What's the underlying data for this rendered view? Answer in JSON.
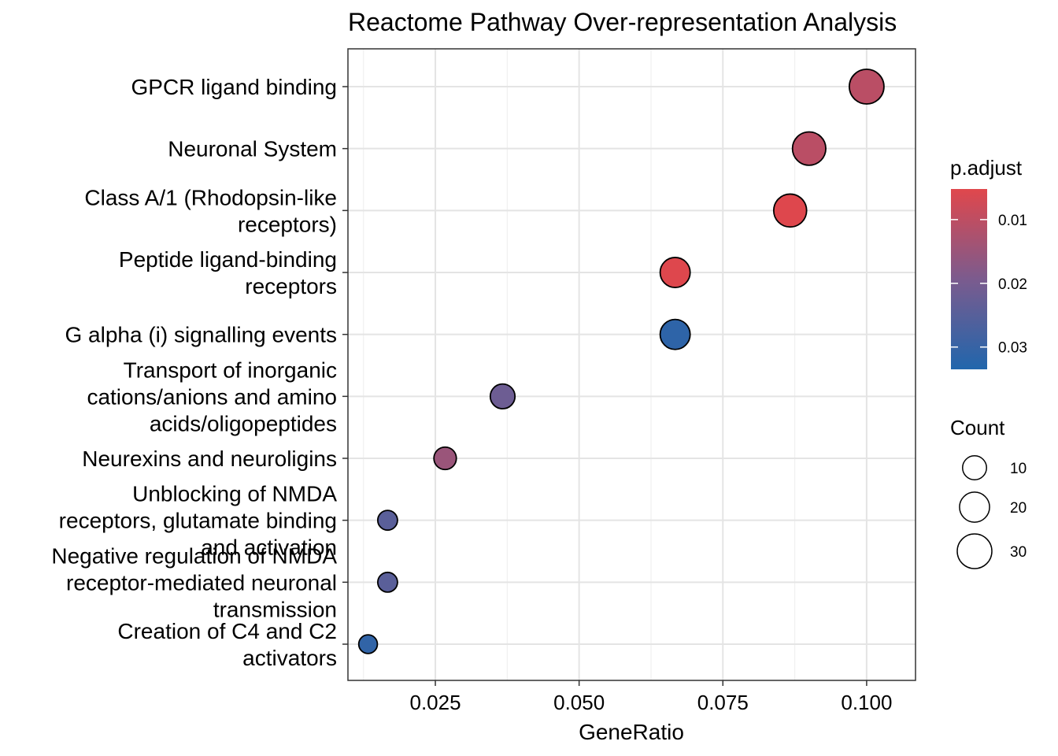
{
  "chart_data": {
    "type": "scatter",
    "title": "Reactome Pathway Over-representation Analysis",
    "xlabel": "GeneRatio",
    "ylabel": "",
    "xlim": [
      0.0098,
      0.1085
    ],
    "xticks": [
      0.025,
      0.05,
      0.075,
      0.1
    ],
    "xtick_labels": [
      "0.025",
      "0.050",
      "0.075",
      "0.100"
    ],
    "grid": true,
    "points": [
      {
        "label_lines": [
          "GPCR ligand binding"
        ],
        "x": 0.1,
        "count": 30,
        "p_adjust": 0.0105
      },
      {
        "label_lines": [
          "Neuronal System"
        ],
        "x": 0.09,
        "count": 27,
        "p_adjust": 0.0105
      },
      {
        "label_lines": [
          "Class A/1 (Rhodopsin-like",
          "receptors)"
        ],
        "x": 0.0867,
        "count": 26,
        "p_adjust": 0.0055
      },
      {
        "label_lines": [
          "Peptide ligand-binding",
          "receptors"
        ],
        "x": 0.0667,
        "count": 20,
        "p_adjust": 0.0055
      },
      {
        "label_lines": [
          "G alpha (i) signalling events"
        ],
        "x": 0.0667,
        "count": 20,
        "p_adjust": 0.0315
      },
      {
        "label_lines": [
          "Transport of inorganic",
          "cations/anions and amino",
          "acids/oligopeptides"
        ],
        "x": 0.0367,
        "count": 11,
        "p_adjust": 0.0215
      },
      {
        "label_lines": [
          "Neurexins and neuroligins"
        ],
        "x": 0.0267,
        "count": 8,
        "p_adjust": 0.015
      },
      {
        "label_lines": [
          "Unblocking of NMDA",
          "receptors, glutamate binding",
          "and activation"
        ],
        "x": 0.0167,
        "count": 5,
        "p_adjust": 0.0245
      },
      {
        "label_lines": [
          "Negative regulation of NMDA",
          "receptor-mediated neuronal",
          "transmission"
        ],
        "x": 0.0167,
        "count": 5,
        "p_adjust": 0.0245
      },
      {
        "label_lines": [
          "Creation of C4 and C2",
          "activators"
        ],
        "x": 0.0133,
        "count": 4,
        "p_adjust": 0.031
      }
    ],
    "color_legend": {
      "title": "p.adjust",
      "range": [
        0.0052,
        0.0335
      ],
      "ticks": [
        0.01,
        0.02,
        0.03
      ],
      "tick_labels": [
        "0.01",
        "0.02",
        "0.03"
      ],
      "low_color": "#e0474c",
      "high_color": "#2166ac",
      "mid_color": "#7b5b8e"
    },
    "size_legend": {
      "title": "Count",
      "values": [
        10,
        20,
        30
      ],
      "labels": [
        "10",
        "20",
        "30"
      ]
    }
  }
}
